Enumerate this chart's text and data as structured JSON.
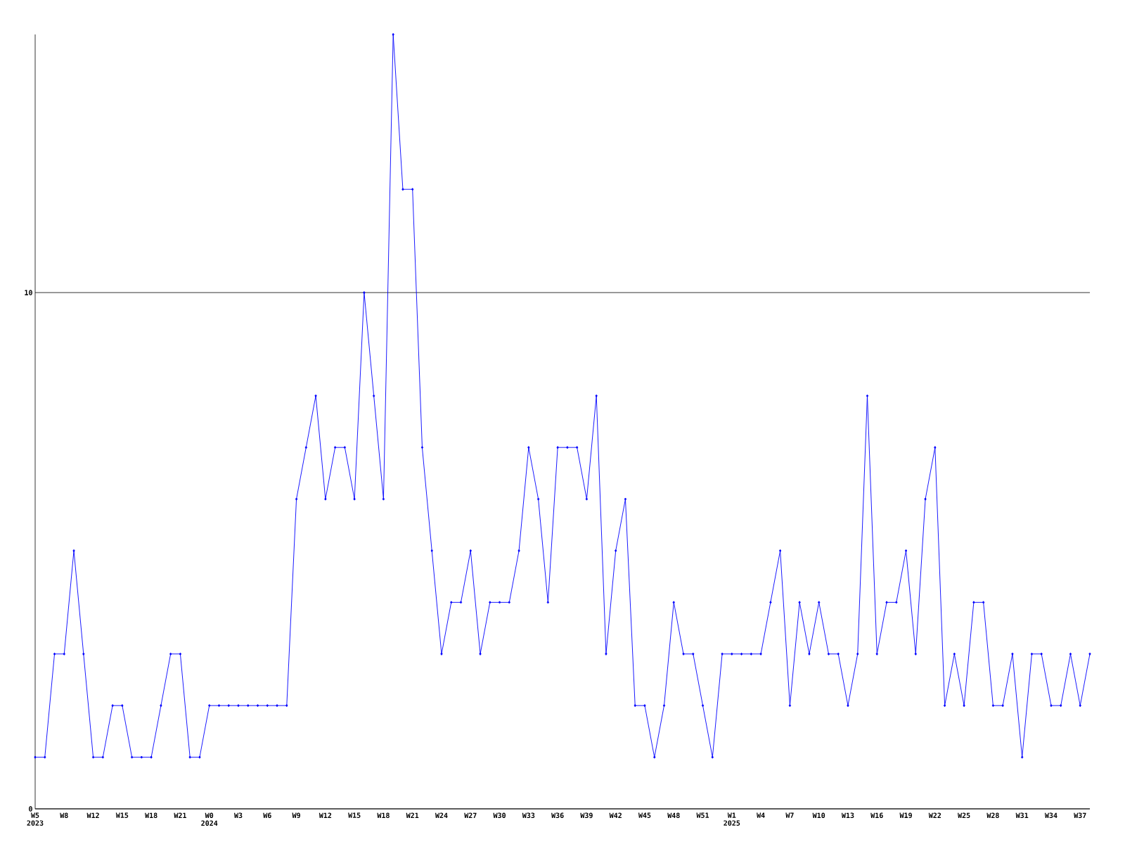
{
  "chart_data": {
    "type": "line",
    "categories": [
      "W5",
      null,
      null,
      "W8",
      null,
      null,
      "W12",
      null,
      null,
      "W15",
      null,
      null,
      "W18",
      null,
      null,
      "W21",
      null,
      null,
      "W0",
      null,
      null,
      "W3",
      null,
      null,
      "W6",
      null,
      null,
      "W9",
      null,
      null,
      "W12",
      null,
      null,
      "W15",
      null,
      null,
      "W18",
      null,
      null,
      "W21",
      null,
      null,
      "W24",
      null,
      null,
      "W27",
      null,
      null,
      "W30",
      null,
      null,
      "W33",
      null,
      null,
      "W36",
      null,
      null,
      "W39",
      null,
      null,
      "W42",
      null,
      null,
      "W45",
      null,
      null,
      "W48",
      null,
      null,
      "W51",
      null,
      null,
      "W1",
      null,
      null,
      "W4",
      null,
      null,
      "W7",
      null,
      null,
      "W10",
      null,
      null,
      "W13",
      null,
      null,
      "W16",
      null,
      null,
      "W19",
      null,
      null,
      "W22",
      null,
      null,
      "W25",
      null,
      null,
      "W28",
      null,
      null,
      "W31",
      null,
      null,
      "W34",
      null,
      null,
      "W37",
      null
    ],
    "values": [
      1,
      1,
      3,
      3,
      5,
      3,
      1,
      1,
      2,
      2,
      1,
      1,
      1,
      2,
      3,
      3,
      1,
      1,
      2,
      2,
      2,
      2,
      2,
      2,
      2,
      2,
      2,
      6,
      7,
      8,
      6,
      7,
      7,
      6,
      10,
      8,
      6,
      15,
      12,
      12,
      7,
      5,
      3,
      4,
      4,
      5,
      3,
      4,
      4,
      4,
      5,
      7,
      6,
      4,
      7,
      7,
      7,
      6,
      8,
      3,
      5,
      6,
      2,
      2,
      1,
      2,
      4,
      3,
      3,
      2,
      1,
      3,
      3,
      3,
      3,
      3,
      4,
      5,
      2,
      4,
      3,
      4,
      3,
      3,
      2,
      3,
      8,
      3,
      4,
      4,
      5,
      3,
      6,
      7,
      2,
      3,
      2,
      4,
      4,
      2,
      2,
      3,
      1,
      3,
      3,
      2,
      2,
      3,
      2,
      3
    ],
    "color": "#0000ff",
    "marker": "diamond",
    "grid": "y",
    "ylim": [
      0,
      15
    ],
    "yticks": [
      0,
      10
    ],
    "annotations": [
      "2023",
      "2024",
      "2025"
    ]
  }
}
